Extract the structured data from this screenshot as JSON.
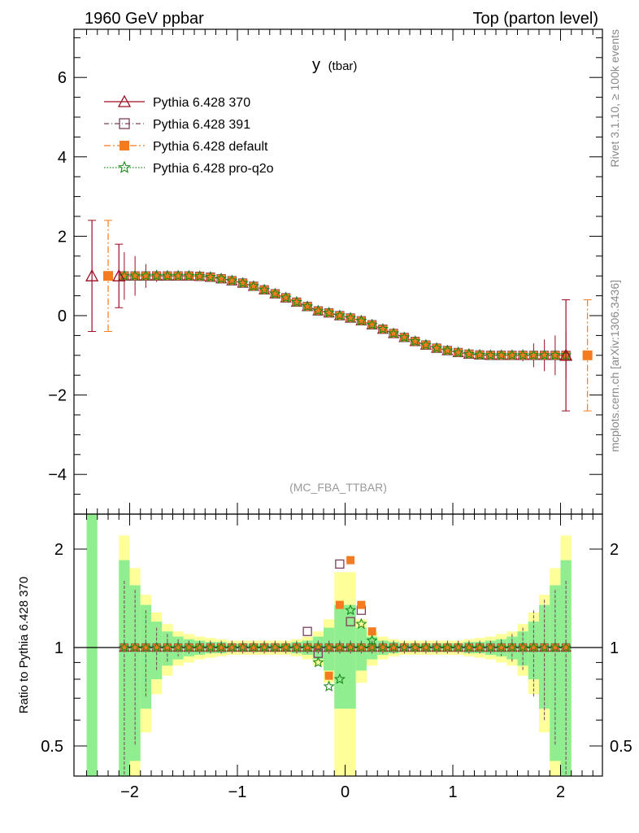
{
  "header": {
    "left_title": "1960 GeV ppbar",
    "right_title": "Top (parton level)"
  },
  "main_panel": {
    "title": "y",
    "title_suffix": "(tbar)",
    "analysis_tag": "(MC_FBA_TTBAR)",
    "yticks": [
      "6",
      "4",
      "2",
      "0",
      "−2",
      "−4"
    ]
  },
  "ratio_panel": {
    "ylabel": "Ratio to Pythia 6.428 370",
    "yticks": [
      "2",
      "1",
      "0.5"
    ]
  },
  "xticks": [
    "−2",
    "−1",
    "0",
    "1",
    "2"
  ],
  "side_text": {
    "rivet": "Rivet 3.1.10, ≥ 100k events",
    "mcplots": "mcplots.cern.ch [arXiv:1306.3436]"
  },
  "legend": [
    {
      "label": "Pythia 6.428 370",
      "color": "#9b0d23",
      "marker": "open-triangle",
      "line": "solid"
    },
    {
      "label": "Pythia 6.428 391",
      "color": "#7b3f5c",
      "marker": "open-square",
      "line": "dash-dot"
    },
    {
      "label": "Pythia 6.428 default",
      "color": "#f47b20",
      "marker": "filled-square",
      "line": "dash-dot"
    },
    {
      "label": "Pythia 6.428 pro-q2o",
      "color": "#1a8a1a",
      "marker": "star",
      "line": "dotted"
    }
  ],
  "band_colors": {
    "inner": "#90ee90",
    "outer": "#ffff99"
  },
  "chart_data": {
    "type": "line",
    "xlim": [
      -2.45,
      2.45
    ],
    "main_ylim": [
      -5.0,
      7.2
    ],
    "ratio_ylim": [
      0.33,
      2.28
    ],
    "ratio_scale": "log",
    "grid": false,
    "legend_position": "top-left",
    "series": [
      {
        "name": "Pythia 6.428 370",
        "points": [
          {
            "x": -2.35,
            "y": 1.0,
            "err": 1.4
          },
          {
            "x": -2.1,
            "y": 1.0,
            "err": 0.8
          },
          {
            "x": 2.05,
            "y": -1.0,
            "err": 1.4
          }
        ],
        "ratio": []
      },
      {
        "name": "Pythia 6.428 391",
        "ratio": [
          {
            "x": -0.35,
            "y": 1.12
          },
          {
            "x": -0.25,
            "y": 0.96
          },
          {
            "x": -0.05,
            "y": 1.8
          },
          {
            "x": 0.05,
            "y": 1.2
          },
          {
            "x": 0.15,
            "y": 1.3
          }
        ]
      },
      {
        "name": "Pythia 6.428 default",
        "points": [
          {
            "x": -2.2,
            "y": 1.0,
            "err": 1.4
          },
          {
            "x": 2.25,
            "y": -1.0,
            "err": 1.4
          }
        ],
        "ratio": [
          {
            "x": -0.15,
            "y": 0.82
          },
          {
            "x": -0.05,
            "y": 1.35
          },
          {
            "x": 0.05,
            "y": 1.85
          },
          {
            "x": 0.15,
            "y": 1.35
          },
          {
            "x": 0.25,
            "y": 1.12
          }
        ]
      },
      {
        "name": "Pythia 6.428 pro-q2o",
        "ratio": [
          {
            "x": -0.25,
            "y": 0.9
          },
          {
            "x": -0.15,
            "y": 0.76
          },
          {
            "x": -0.05,
            "y": 0.8
          },
          {
            "x": 0.05,
            "y": 1.3
          },
          {
            "x": 0.15,
            "y": 1.18
          },
          {
            "x": 0.25,
            "y": 1.05
          }
        ]
      }
    ],
    "shape": {
      "x": [
        -2.05,
        -1.95,
        -1.85,
        -1.75,
        -1.65,
        -1.55,
        -1.45,
        -1.35,
        -1.25,
        -1.15,
        -1.05,
        -0.95,
        -0.85,
        -0.75,
        -0.65,
        -0.55,
        -0.45,
        -0.35,
        -0.25,
        -0.15,
        -0.05,
        0.05,
        0.15,
        0.25,
        0.35,
        0.45,
        0.55,
        0.65,
        0.75,
        0.85,
        0.95,
        1.05,
        1.15,
        1.25,
        1.35,
        1.45,
        1.55,
        1.65,
        1.75,
        1.85,
        1.95,
        2.05
      ],
      "y": [
        1.0,
        1.0,
        1.0,
        1.0,
        1.0,
        1.0,
        1.0,
        0.99,
        0.97,
        0.93,
        0.88,
        0.82,
        0.74,
        0.65,
        0.55,
        0.45,
        0.34,
        0.23,
        0.12,
        0.07,
        0.0,
        -0.06,
        -0.13,
        -0.23,
        -0.34,
        -0.45,
        -0.55,
        -0.65,
        -0.74,
        -0.82,
        -0.88,
        -0.93,
        -0.97,
        -0.99,
        -1.0,
        -1.0,
        -1.0,
        -1.0,
        -1.0,
        -1.0,
        -1.0,
        -1.0
      ],
      "err": [
        0.6,
        0.5,
        0.3,
        0.15,
        0.1,
        0.06,
        0.05,
        0.05,
        0.05,
        0.05,
        0.05,
        0.05,
        0.05,
        0.05,
        0.05,
        0.05,
        0.05,
        0.05,
        0.05,
        0.05,
        0.05,
        0.05,
        0.05,
        0.05,
        0.05,
        0.05,
        0.05,
        0.05,
        0.05,
        0.05,
        0.05,
        0.05,
        0.05,
        0.05,
        0.05,
        0.06,
        0.1,
        0.15,
        0.3,
        0.4,
        0.5,
        0.6
      ]
    },
    "ratio_band": {
      "x_edges": [
        -2.4,
        -2.3,
        -2.2,
        -2.1,
        -2.0,
        -1.9,
        -1.8,
        -1.7,
        -1.6,
        -1.5,
        -1.4,
        -1.3,
        -1.2,
        -1.1,
        -1.0,
        -0.9,
        -0.8,
        -0.7,
        -0.6,
        -0.5,
        -0.4,
        -0.3,
        -0.2,
        -0.1,
        0.0,
        0.1,
        0.2,
        0.3,
        0.4,
        0.5,
        0.6,
        0.7,
        0.8,
        0.9,
        1.0,
        1.1,
        1.2,
        1.3,
        1.4,
        1.5,
        1.6,
        1.7,
        1.8,
        1.9,
        2.0,
        2.1,
        2.2
      ],
      "inner": [
        2.3,
        0,
        0,
        0.85,
        0.55,
        0.35,
        0.2,
        0.12,
        0.08,
        0.06,
        0.05,
        0.04,
        0.04,
        0.03,
        0.03,
        0.03,
        0.03,
        0.03,
        0.03,
        0.04,
        0.05,
        0.08,
        0.15,
        0.35,
        0.35,
        0.15,
        0.08,
        0.05,
        0.04,
        0.03,
        0.03,
        0.03,
        0.03,
        0.03,
        0.03,
        0.04,
        0.04,
        0.05,
        0.06,
        0.08,
        0.12,
        0.2,
        0.35,
        0.55,
        0.85,
        0,
        0
      ],
      "outer": [
        0,
        0,
        0,
        1.2,
        0.75,
        0.45,
        0.28,
        0.18,
        0.12,
        0.1,
        0.08,
        0.07,
        0.06,
        0.05,
        0.05,
        0.05,
        0.05,
        0.05,
        0.05,
        0.06,
        0.08,
        0.12,
        0.22,
        0.7,
        0.7,
        0.22,
        0.12,
        0.08,
        0.06,
        0.05,
        0.05,
        0.05,
        0.05,
        0.05,
        0.05,
        0.06,
        0.07,
        0.08,
        0.1,
        0.12,
        0.18,
        0.28,
        0.45,
        0.75,
        1.2,
        0,
        0
      ]
    }
  }
}
